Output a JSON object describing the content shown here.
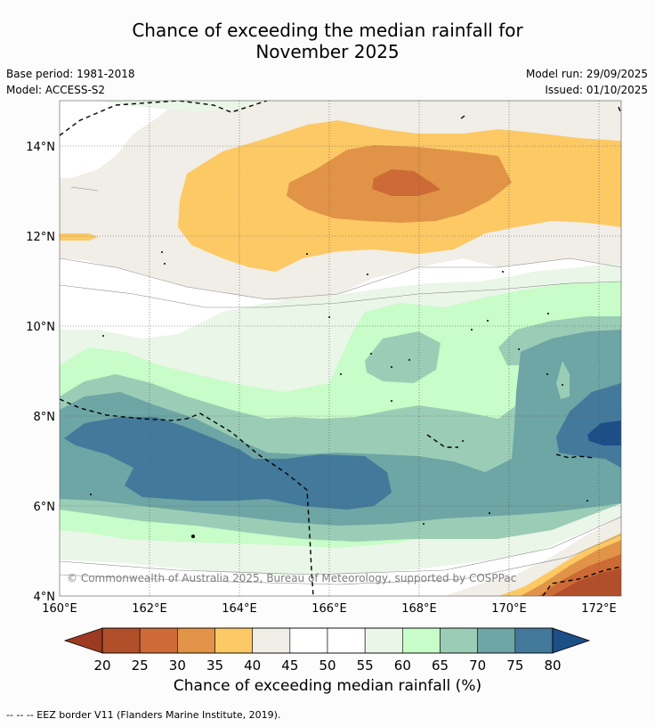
{
  "title_line1": "Chance of exceeding the median rainfall for",
  "title_line2": "November 2025",
  "meta_left": {
    "base_period": "Base period: 1981-2018",
    "model": "Model: ACCESS-S2"
  },
  "meta_right": {
    "model_run": "Model run: 29/09/2025",
    "issued": "Issued: 01/10/2025"
  },
  "map": {
    "lon_range": [
      160,
      172.5
    ],
    "lat_range": [
      4,
      15
    ],
    "x_ticks": [
      "160°E",
      "162°E",
      "164°E",
      "166°E",
      "168°E",
      "170°E",
      "172°E"
    ],
    "y_ticks": [
      "4°N",
      "6°N",
      "8°N",
      "10°N",
      "12°N",
      "14°N"
    ],
    "copyright": "© Commonwealth of Australia 2025, Bureau of Meteorology, supported by COSPPac"
  },
  "colorbar": {
    "ticks": [
      "20",
      "25",
      "30",
      "35",
      "40",
      "45",
      "50",
      "55",
      "60",
      "65",
      "70",
      "75",
      "80"
    ],
    "colors": [
      "#b14f2a",
      "#cd6a35",
      "#e19447",
      "#fcc965",
      "#f1ede7",
      "#ffffff",
      "#ffffff",
      "#eaf6e8",
      "#c8fcc8",
      "#9bcdb6",
      "#6ea5a5",
      "#43799a"
    ],
    "low_color": "#9c3a22",
    "high_color": "#1c4f86",
    "label": "Chance of exceeding median rainfall (%)"
  },
  "footer": "--  --  -- EEZ border V11 (Flanders Marine Institute, 2019)."
}
